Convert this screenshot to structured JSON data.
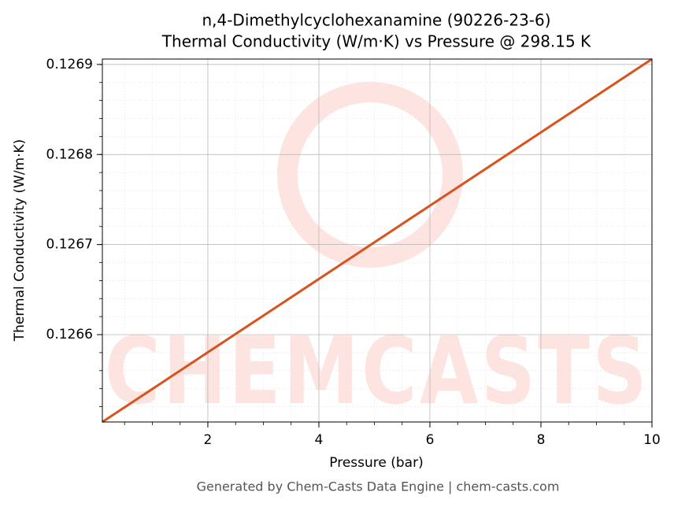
{
  "chart_data": {
    "type": "line",
    "title": [
      "n,4-Dimethylcyclohexanamine (90226-23-6)",
      "Thermal Conductivity (W/m·K) vs Pressure @ 298.15 K"
    ],
    "x_label": "Pressure (bar)",
    "y_label": "Thermal Conductivity (W/m·K)",
    "x": [
      0.1,
      10
    ],
    "series": [
      {
        "name": "Thermal Conductivity",
        "color": "#d9531e",
        "values": [
          0.126503,
          0.126906
        ]
      }
    ],
    "xlim": [
      0.1,
      10
    ],
    "xticks": [
      2,
      4,
      6,
      8,
      10
    ],
    "ylim": [
      0.126503,
      0.126906
    ],
    "yticks": [
      0.1266,
      0.1267,
      0.1268,
      0.1269
    ],
    "grid": true,
    "minor_grid": true,
    "watermark": "CHEMCASTS",
    "footer": "Generated by Chem-Casts Data Engine | chem-casts.com"
  }
}
